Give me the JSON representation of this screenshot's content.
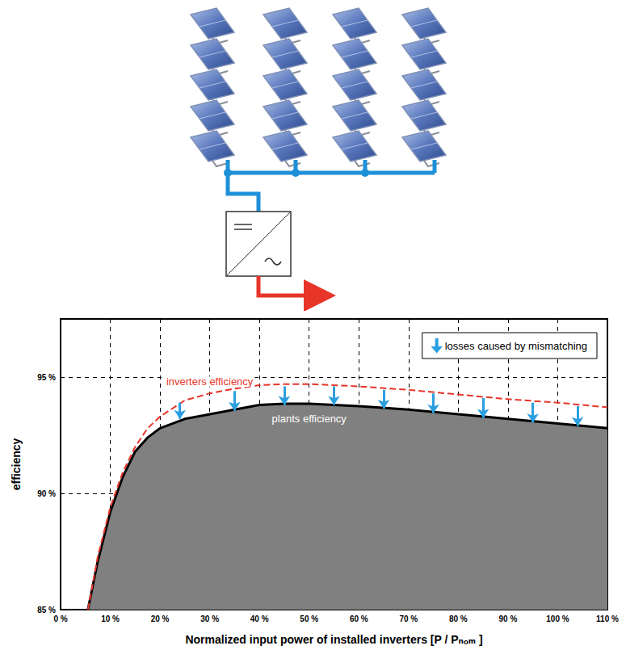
{
  "chart_data": {
    "type": "line",
    "xlabel": "Normalized input power of installed inverters [P / Pₙₒₘ ]",
    "ylabel": "efficiency",
    "xlim": [
      0,
      110
    ],
    "xticks": [
      {
        "value": 0,
        "label": "0 %"
      },
      {
        "value": 10,
        "label": "10 %"
      },
      {
        "value": 20,
        "label": "20 %"
      },
      {
        "value": 30,
        "label": "30 %"
      },
      {
        "value": 40,
        "label": "40 %"
      },
      {
        "value": 50,
        "label": "50 %"
      },
      {
        "value": 60,
        "label": "60 %"
      },
      {
        "value": 70,
        "label": "70 %"
      },
      {
        "value": 80,
        "label": "80 %"
      },
      {
        "value": 90,
        "label": "90 %"
      },
      {
        "value": 100,
        "label": "100 %"
      },
      {
        "value": 110,
        "label": "110 %"
      }
    ],
    "ylim": [
      85,
      97.5
    ],
    "yticks": [
      {
        "value": 85,
        "label": "85 %"
      },
      {
        "value": 90,
        "label": "90 %"
      },
      {
        "value": 95,
        "label": "95 %"
      }
    ],
    "grid": true,
    "legend": "upper right",
    "x": [
      5.5,
      7.5,
      10,
      12.5,
      15,
      17.5,
      20,
      25,
      30,
      35,
      40,
      45,
      50,
      60,
      70,
      80,
      90,
      100,
      110
    ],
    "series": [
      {
        "name": "plants efficiency",
        "type": "area",
        "color": "#000000",
        "line_style": "solid",
        "values": [
          85,
          87.1,
          89.2,
          90.7,
          91.8,
          92.4,
          92.8,
          93.2,
          93.4,
          93.6,
          93.8,
          93.85,
          93.85,
          93.75,
          93.6,
          93.4,
          93.2,
          93.0,
          92.8
        ]
      },
      {
        "name": "inverters efficiency",
        "type": "line",
        "color": "#e8352a",
        "line_style": "dashed",
        "values": [
          85,
          87.3,
          89.4,
          90.9,
          92.0,
          92.8,
          93.3,
          94.0,
          94.3,
          94.5,
          94.65,
          94.7,
          94.7,
          94.6,
          94.45,
          94.25,
          94.05,
          93.9,
          93.7
        ]
      }
    ],
    "arrows": {
      "name": "losses caused by mismatching",
      "color": "#2b9fe0",
      "x": [
        24,
        35,
        45,
        55,
        65,
        75,
        85,
        95,
        104
      ],
      "from": [
        93.9,
        94.4,
        94.6,
        94.6,
        94.45,
        94.3,
        94.1,
        93.9,
        93.75
      ],
      "to": [
        93.2,
        93.55,
        93.8,
        93.8,
        93.65,
        93.45,
        93.25,
        93.05,
        92.9
      ]
    }
  }
}
